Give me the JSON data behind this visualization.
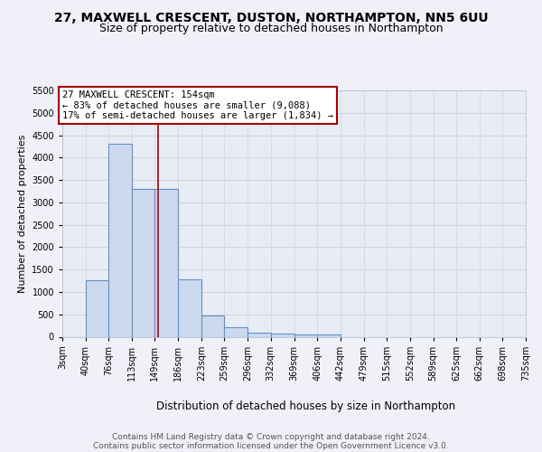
{
  "title1": "27, MAXWELL CRESCENT, DUSTON, NORTHAMPTON, NN5 6UU",
  "title2": "Size of property relative to detached houses in Northampton",
  "xlabel": "Distribution of detached houses by size in Northampton",
  "ylabel": "Number of detached properties",
  "bin_edges": [
    3,
    40,
    76,
    113,
    149,
    186,
    223,
    259,
    296,
    332,
    369,
    406,
    442,
    479,
    515,
    552,
    589,
    625,
    662,
    698,
    735
  ],
  "bar_heights": [
    0,
    1270,
    4300,
    3300,
    3300,
    1280,
    480,
    215,
    95,
    75,
    55,
    55,
    0,
    0,
    0,
    0,
    0,
    0,
    0,
    0
  ],
  "bar_color": "#cdd9ee",
  "bar_edge_color": "#6090c8",
  "bar_linewidth": 0.8,
  "red_line_x": 154,
  "ylim": [
    0,
    5500
  ],
  "yticks": [
    0,
    500,
    1000,
    1500,
    2000,
    2500,
    3000,
    3500,
    4000,
    4500,
    5000,
    5500
  ],
  "annotation_text": "27 MAXWELL CRESCENT: 154sqm\n← 83% of detached houses are smaller (9,088)\n17% of semi-detached houses are larger (1,834) →",
  "annotation_box_color": "#ffffff",
  "annotation_box_edge": "#aa0000",
  "footer1": "Contains HM Land Registry data © Crown copyright and database right 2024.",
  "footer2": "Contains public sector information licensed under the Open Government Licence v3.0.",
  "bg_color": "#f0f0f8",
  "plot_bg": "#e8ecf5",
  "grid_color": "#d0d4e0",
  "title1_fontsize": 10,
  "title2_fontsize": 9,
  "ylabel_fontsize": 8,
  "xlabel_fontsize": 8.5,
  "tick_fontsize": 7,
  "footer_fontsize": 6.5,
  "ann_fontsize": 7.5
}
